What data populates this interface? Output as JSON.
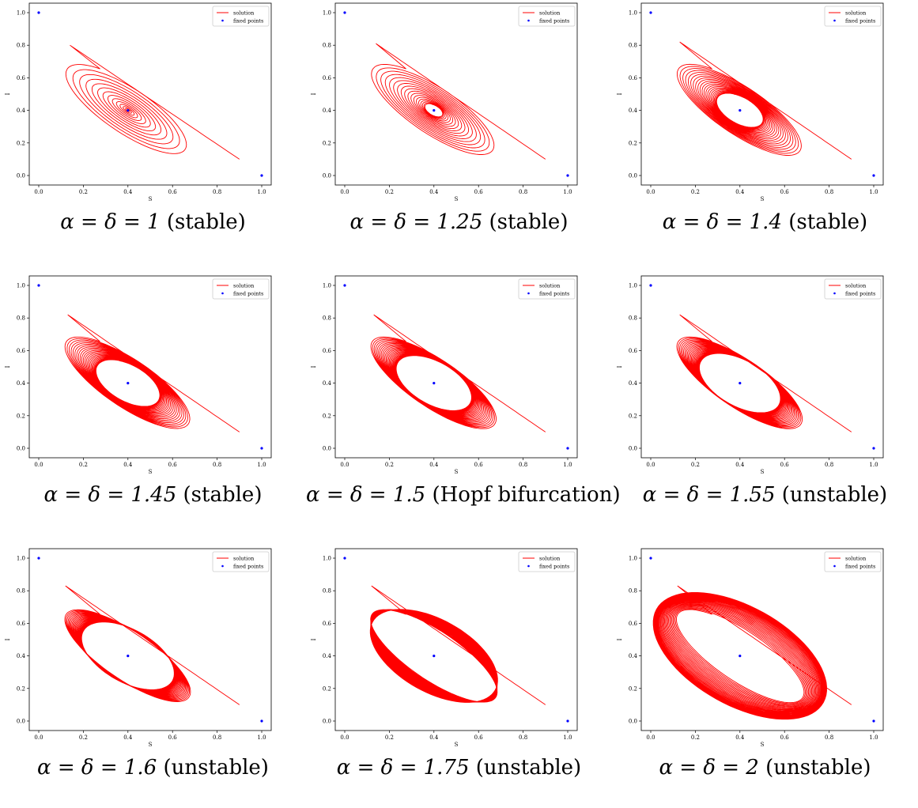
{
  "chart_data": [
    {
      "type": "line",
      "caption_param": "α = δ = 1",
      "caption_status": "(stable)",
      "xlabel": "S",
      "ylabel": "I",
      "xlim": [
        0,
        1
      ],
      "ylim": [
        0,
        1
      ],
      "xticks": [
        "0.0",
        "0.2",
        "0.4",
        "0.6",
        "0.8",
        "1.0"
      ],
      "yticks": [
        "0.0",
        "0.2",
        "0.4",
        "0.6",
        "0.8",
        "1.0"
      ],
      "legend": {
        "placement": "top-right",
        "entries": [
          "solution",
          "fixed points"
        ]
      },
      "fixed_points": [
        {
          "x": 0,
          "y": 1
        },
        {
          "x": 0.4,
          "y": 0.4
        },
        {
          "x": 1,
          "y": 0
        }
      ],
      "series": [
        {
          "name": "solution",
          "color": "#ff0000",
          "start": {
            "x": 0.9,
            "y": 0.1
          },
          "center": {
            "x": 0.4,
            "y": 0.4
          },
          "outer_envelope": {
            "s_min": 0.12,
            "i_max": 0.82,
            "s_max": 0.64,
            "i_min": 0.15
          },
          "inner_hole_radius": 0.0,
          "loops": 14
        }
      ],
      "colors": {
        "solution": "#ff0000",
        "fixed_points": "#0000ff"
      }
    },
    {
      "type": "line",
      "caption_param": "α = δ = 1.25",
      "caption_status": "(stable)",
      "xlabel": "S",
      "ylabel": "I",
      "xlim": [
        0,
        1
      ],
      "ylim": [
        0,
        1
      ],
      "xticks": [
        "0.0",
        "0.2",
        "0.4",
        "0.6",
        "0.8",
        "1.0"
      ],
      "yticks": [
        "0.0",
        "0.2",
        "0.4",
        "0.6",
        "0.8",
        "1.0"
      ],
      "legend": {
        "placement": "top-right",
        "entries": [
          "solution",
          "fixed points"
        ]
      },
      "fixed_points": [
        {
          "x": 0,
          "y": 1
        },
        {
          "x": 0.4,
          "y": 0.4
        },
        {
          "x": 1,
          "y": 0
        }
      ],
      "series": [
        {
          "name": "solution",
          "color": "#ff0000",
          "start": {
            "x": 0.9,
            "y": 0.1
          },
          "center": {
            "x": 0.4,
            "y": 0.4
          },
          "outer_envelope": {
            "s_min": 0.12,
            "i_max": 0.83,
            "s_max": 0.66,
            "i_min": 0.13
          },
          "inner_hole_radius": 0.03,
          "loops": 18
        }
      ],
      "colors": {
        "solution": "#ff0000",
        "fixed_points": "#0000ff"
      }
    },
    {
      "type": "line",
      "caption_param": "α = δ = 1.4",
      "caption_status": "(stable)",
      "xlabel": "S",
      "ylabel": "I",
      "xlim": [
        0,
        1
      ],
      "ylim": [
        0,
        1
      ],
      "xticks": [
        "0.0",
        "0.2",
        "0.4",
        "0.6",
        "0.8",
        "1.0"
      ],
      "yticks": [
        "0.0",
        "0.2",
        "0.4",
        "0.6",
        "0.8",
        "1.0"
      ],
      "legend": {
        "placement": "top-right",
        "entries": [
          "solution",
          "fixed points"
        ]
      },
      "fixed_points": [
        {
          "x": 0,
          "y": 1
        },
        {
          "x": 0.4,
          "y": 0.4
        },
        {
          "x": 1,
          "y": 0
        }
      ],
      "series": [
        {
          "name": "solution",
          "color": "#ff0000",
          "start": {
            "x": 0.9,
            "y": 0.1
          },
          "center": {
            "x": 0.4,
            "y": 0.4
          },
          "outer_envelope": {
            "s_min": 0.11,
            "i_max": 0.84,
            "s_max": 0.67,
            "i_min": 0.12
          },
          "inner_hole_radius": 0.08,
          "loops": 22
        }
      ],
      "colors": {
        "solution": "#ff0000",
        "fixed_points": "#0000ff"
      }
    },
    {
      "type": "line",
      "caption_param": "α = δ = 1.45",
      "caption_status": "(stable)",
      "xlabel": "S",
      "ylabel": "I",
      "xlim": [
        0,
        1
      ],
      "ylim": [
        0,
        1
      ],
      "xticks": [
        "0.0",
        "0.2",
        "0.4",
        "0.6",
        "0.8",
        "1.0"
      ],
      "yticks": [
        "0.0",
        "0.2",
        "0.4",
        "0.6",
        "0.8",
        "1.0"
      ],
      "legend": {
        "placement": "top-right",
        "entries": [
          "solution",
          "fixed points"
        ]
      },
      "fixed_points": [
        {
          "x": 0,
          "y": 1
        },
        {
          "x": 0.4,
          "y": 0.4
        },
        {
          "x": 1,
          "y": 0
        }
      ],
      "series": [
        {
          "name": "solution",
          "color": "#ff0000",
          "start": {
            "x": 0.9,
            "y": 0.1
          },
          "center": {
            "x": 0.4,
            "y": 0.4
          },
          "outer_envelope": {
            "s_min": 0.11,
            "i_max": 0.84,
            "s_max": 0.67,
            "i_min": 0.12
          },
          "inner_hole_radius": 0.11,
          "loops": 24
        }
      ],
      "colors": {
        "solution": "#ff0000",
        "fixed_points": "#0000ff"
      }
    },
    {
      "type": "line",
      "caption_param": "α = δ = 1.5",
      "caption_status": "(Hopf bifurcation)",
      "xlabel": "S",
      "ylabel": "I",
      "xlim": [
        0,
        1
      ],
      "ylim": [
        0,
        1
      ],
      "xticks": [
        "0.0",
        "0.2",
        "0.4",
        "0.6",
        "0.8",
        "1.0"
      ],
      "yticks": [
        "0.0",
        "0.2",
        "0.4",
        "0.6",
        "0.8",
        "1.0"
      ],
      "legend": {
        "placement": "top-right",
        "entries": [
          "solution",
          "fixed points"
        ]
      },
      "fixed_points": [
        {
          "x": 0,
          "y": 1
        },
        {
          "x": 0.4,
          "y": 0.4
        },
        {
          "x": 1,
          "y": 0
        }
      ],
      "series": [
        {
          "name": "solution",
          "color": "#ff0000",
          "start": {
            "x": 0.9,
            "y": 0.1
          },
          "center": {
            "x": 0.4,
            "y": 0.4
          },
          "outer_envelope": {
            "s_min": 0.11,
            "i_max": 0.84,
            "s_max": 0.67,
            "i_min": 0.11
          },
          "inner_hole_radius": 0.13,
          "loops": 26
        }
      ],
      "colors": {
        "solution": "#ff0000",
        "fixed_points": "#0000ff"
      }
    },
    {
      "type": "line",
      "caption_param": "α = δ = 1.55",
      "caption_status": "(unstable)",
      "xlabel": "S",
      "ylabel": "I",
      "xlim": [
        0,
        1
      ],
      "ylim": [
        0,
        1
      ],
      "xticks": [
        "0.0",
        "0.2",
        "0.4",
        "0.6",
        "0.8",
        "1.0"
      ],
      "yticks": [
        "0.0",
        "0.2",
        "0.4",
        "0.6",
        "0.8",
        "1.0"
      ],
      "legend": {
        "placement": "top-right",
        "entries": [
          "solution",
          "fixed points"
        ]
      },
      "fixed_points": [
        {
          "x": 0,
          "y": 1
        },
        {
          "x": 0.4,
          "y": 0.4
        },
        {
          "x": 1,
          "y": 0
        }
      ],
      "series": [
        {
          "name": "solution",
          "color": "#ff0000",
          "start": {
            "x": 0.9,
            "y": 0.1
          },
          "center": {
            "x": 0.4,
            "y": 0.4
          },
          "outer_envelope": {
            "s_min": 0.11,
            "i_max": 0.84,
            "s_max": 0.67,
            "i_min": 0.11
          },
          "inner_hole_radius": 0.14,
          "loops": 26
        }
      ],
      "colors": {
        "solution": "#ff0000",
        "fixed_points": "#0000ff"
      }
    },
    {
      "type": "line",
      "caption_param": "α = δ = 1.6",
      "caption_status": "(unstable)",
      "xlabel": "S",
      "ylabel": "I",
      "xlim": [
        0,
        1
      ],
      "ylim": [
        0,
        1
      ],
      "xticks": [
        "0.0",
        "0.2",
        "0.4",
        "0.6",
        "0.8",
        "1.0"
      ],
      "yticks": [
        "0.0",
        "0.2",
        "0.4",
        "0.6",
        "0.8",
        "1.0"
      ],
      "legend": {
        "placement": "top-right",
        "entries": [
          "solution",
          "fixed points"
        ]
      },
      "fixed_points": [
        {
          "x": 0,
          "y": 1
        },
        {
          "x": 0.4,
          "y": 0.4
        },
        {
          "x": 1,
          "y": 0
        }
      ],
      "series": [
        {
          "name": "solution",
          "color": "#ff0000",
          "start": {
            "x": 0.9,
            "y": 0.1
          },
          "center": {
            "x": 0.4,
            "y": 0.4
          },
          "outer_envelope": {
            "s_min": 0.1,
            "i_max": 0.85,
            "s_max": 0.68,
            "i_min": 0.12
          },
          "inner_hole_radius": 0.16,
          "loops": 26
        }
      ],
      "colors": {
        "solution": "#ff0000",
        "fixed_points": "#0000ff"
      }
    },
    {
      "type": "line",
      "caption_param": "α = δ = 1.75",
      "caption_status": "(unstable)",
      "xlabel": "S",
      "ylabel": "I",
      "xlim": [
        0,
        1
      ],
      "ylim": [
        0,
        1
      ],
      "xticks": [
        "0.0",
        "0.2",
        "0.4",
        "0.6",
        "0.8",
        "1.0"
      ],
      "yticks": [
        "0.0",
        "0.2",
        "0.4",
        "0.6",
        "0.8",
        "1.0"
      ],
      "legend": {
        "placement": "top-right",
        "entries": [
          "solution",
          "fixed points"
        ]
      },
      "fixed_points": [
        {
          "x": 0,
          "y": 1
        },
        {
          "x": 0.4,
          "y": 0.4
        },
        {
          "x": 1,
          "y": 0
        }
      ],
      "series": [
        {
          "name": "solution",
          "color": "#ff0000",
          "start": {
            "x": 0.9,
            "y": 0.1
          },
          "center": {
            "x": 0.4,
            "y": 0.4
          },
          "outer_envelope": {
            "s_min": 0.1,
            "i_max": 0.85,
            "s_max": 0.69,
            "i_min": 0.11
          },
          "inner_hole_radius": 0.22,
          "loops": 28
        }
      ],
      "colors": {
        "solution": "#ff0000",
        "fixed_points": "#0000ff"
      }
    },
    {
      "type": "line",
      "caption_param": "α = δ = 2",
      "caption_status": "(unstable)",
      "xlabel": "S",
      "ylabel": "I",
      "xlim": [
        0,
        1
      ],
      "ylim": [
        0,
        1
      ],
      "xticks": [
        "0.0",
        "0.2",
        "0.4",
        "0.6",
        "0.8",
        "1.0"
      ],
      "yticks": [
        "0.0",
        "0.2",
        "0.4",
        "0.6",
        "0.8",
        "1.0"
      ],
      "legend": {
        "placement": "top-right",
        "entries": [
          "solution",
          "fixed points"
        ]
      },
      "fixed_points": [
        {
          "x": 0,
          "y": 1
        },
        {
          "x": 0.4,
          "y": 0.4
        },
        {
          "x": 1,
          "y": 0
        }
      ],
      "series": [
        {
          "name": "solution",
          "color": "#ff0000",
          "start": {
            "x": 0.9,
            "y": 0.1
          },
          "center": {
            "x": 0.4,
            "y": 0.4
          },
          "outer_envelope": {
            "s_min": 0.1,
            "i_max": 0.85,
            "s_max": 0.7,
            "i_min": 0.1
          },
          "inner_hole_radius": 0.3,
          "loops": 30
        }
      ],
      "colors": {
        "solution": "#ff0000",
        "fixed_points": "#0000ff"
      }
    }
  ]
}
